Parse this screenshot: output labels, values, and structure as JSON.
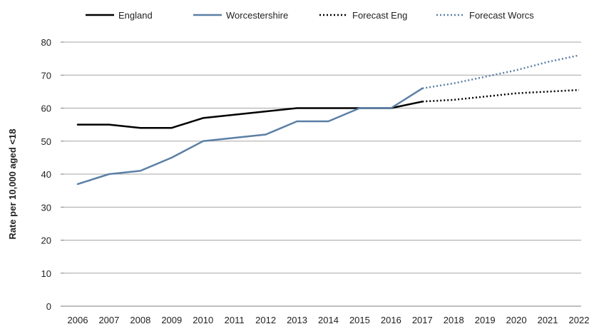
{
  "chart_data": {
    "type": "line",
    "title": "",
    "xlabel": "",
    "ylabel": "Rate per 10,000 aged <18",
    "x": [
      "2006",
      "2007",
      "2008",
      "2009",
      "2010",
      "2011",
      "2012",
      "2013",
      "2014",
      "2015",
      "2016",
      "2017",
      "2018",
      "2019",
      "2020",
      "2021",
      "2022"
    ],
    "ylim": [
      0,
      80
    ],
    "yticks": [
      0,
      10,
      20,
      30,
      40,
      50,
      60,
      70,
      80
    ],
    "grid": true,
    "legend_position": "top",
    "series": [
      {
        "name": "England",
        "color": "#000000",
        "style": "solid",
        "points": [
          [
            "2006",
            55
          ],
          [
            "2007",
            55
          ],
          [
            "2008",
            54
          ],
          [
            "2009",
            54
          ],
          [
            "2010",
            57
          ],
          [
            "2011",
            58
          ],
          [
            "2012",
            59
          ],
          [
            "2013",
            60
          ],
          [
            "2014",
            60
          ],
          [
            "2015",
            60
          ],
          [
            "2016",
            60
          ],
          [
            "2017",
            62
          ]
        ]
      },
      {
        "name": "Worcestershire",
        "color": "#5b7fa6",
        "style": "solid",
        "points": [
          [
            "2006",
            37
          ],
          [
            "2007",
            40
          ],
          [
            "2008",
            41
          ],
          [
            "2009",
            45
          ],
          [
            "2010",
            50
          ],
          [
            "2011",
            51
          ],
          [
            "2012",
            52
          ],
          [
            "2013",
            56
          ],
          [
            "2014",
            56
          ],
          [
            "2015",
            60
          ],
          [
            "2016",
            60
          ],
          [
            "2017",
            66
          ]
        ]
      },
      {
        "name": "Forecast Eng",
        "color": "#000000",
        "style": "dotted",
        "points": [
          [
            "2017",
            62
          ],
          [
            "2018",
            62.5
          ],
          [
            "2019",
            63.5
          ],
          [
            "2020",
            64.5
          ],
          [
            "2021",
            65
          ],
          [
            "2022",
            65.5
          ]
        ]
      },
      {
        "name": "Forecast Worcs",
        "color": "#5b7fa6",
        "style": "dotted",
        "points": [
          [
            "2015",
            60
          ],
          [
            "2016",
            60
          ]
        ]
      },
      {
        "name": "Forecast Worcs",
        "color": "#5b7fa6",
        "style": "dotted",
        "points": [
          [
            "2017",
            66
          ],
          [
            "2018",
            67.5
          ],
          [
            "2019",
            69.5
          ],
          [
            "2020",
            71.5
          ],
          [
            "2021",
            74
          ],
          [
            "2022",
            76
          ]
        ]
      }
    ]
  }
}
